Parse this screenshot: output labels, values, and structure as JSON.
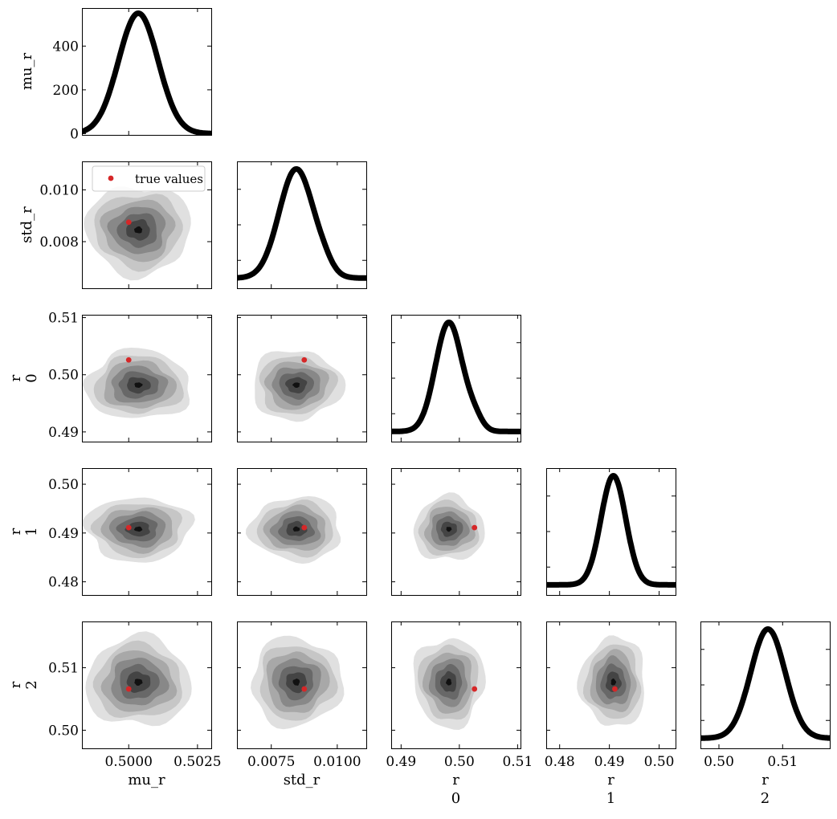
{
  "chart_data": {
    "type": "corner",
    "params": [
      "mu_r",
      "std_r",
      "r_0",
      "r_1",
      "r_2"
    ],
    "labels": {
      "mu_r": [
        "mu_r"
      ],
      "std_r": [
        "std_r"
      ],
      "r_0": [
        "r",
        "0"
      ],
      "r_1": [
        "r",
        "1"
      ],
      "r_2": [
        "r",
        "2"
      ]
    },
    "ranges": {
      "mu_r": [
        0.4983,
        0.503
      ],
      "std_r": [
        0.0062,
        0.0111
      ],
      "r_0": [
        0.4883,
        0.5105
      ],
      "r_1": [
        0.4773,
        0.5033
      ],
      "r_2": [
        0.4971,
        0.5174
      ]
    },
    "ticks": {
      "mu_r": [
        {
          "v": 0.5,
          "label": "0.5000"
        },
        {
          "v": 0.5025,
          "label": "0.5025"
        }
      ],
      "std_r": [
        {
          "v": 0.0075,
          "label": "0.0075"
        },
        {
          "v": 0.01,
          "label": "0.0100"
        }
      ],
      "r_0": [
        {
          "v": 0.49,
          "label": "0.49"
        },
        {
          "v": 0.5,
          "label": "0.50"
        },
        {
          "v": 0.51,
          "label": "0.51"
        }
      ],
      "r_1": [
        {
          "v": 0.48,
          "label": "0.48"
        },
        {
          "v": 0.49,
          "label": "0.49"
        },
        {
          "v": 0.5,
          "label": "0.50"
        }
      ],
      "r_2": [
        {
          "v": 0.5,
          "label": "0.50"
        },
        {
          "v": 0.51,
          "label": "0.51"
        }
      ]
    },
    "row_ticks": {
      "std_r": [
        {
          "v": 0.008,
          "label": "0.008"
        },
        {
          "v": 0.01,
          "label": "0.010"
        }
      ],
      "r_0": [
        {
          "v": 0.49,
          "label": "0.49"
        },
        {
          "v": 0.5,
          "label": "0.50"
        },
        {
          "v": 0.51,
          "label": "0.51"
        }
      ],
      "r_1": [
        {
          "v": 0.48,
          "label": "0.48"
        },
        {
          "v": 0.49,
          "label": "0.49"
        },
        {
          "v": 0.5,
          "label": "0.50"
        }
      ],
      "r_2": [
        {
          "v": 0.5,
          "label": "0.50"
        },
        {
          "v": 0.51,
          "label": "0.51"
        }
      ]
    },
    "marginal_ylabel": "mu_r",
    "marginal_yticks": [
      {
        "v": 0,
        "label": "0"
      },
      {
        "v": 200,
        "label": "200"
      },
      {
        "v": 400,
        "label": "400"
      }
    ],
    "marginal_ymax": 580,
    "marginals": {
      "mu_r": {
        "peak": 550,
        "center": 0.50035,
        "sigma": 0.00072
      },
      "std_r": {
        "center": 0.00845,
        "sigma": 0.00065
      },
      "r_0": {
        "center": 0.4982,
        "sigma": 0.0023
      },
      "r_1": {
        "center": 0.4908,
        "sigma": 0.0025
      },
      "r_2": {
        "center": 0.5077,
        "sigma": 0.0027
      }
    },
    "true_values": {
      "mu_r": 0.5,
      "std_r": 0.00875,
      "r_0": 0.5026,
      "r_1": 0.4911,
      "r_2": 0.5066
    },
    "legend": {
      "label": "true values",
      "placement": "top-left",
      "marker_color": "#d62728"
    },
    "contour_colors": [
      "#e0e0e0",
      "#c6c6c6",
      "#a8a8a8",
      "#888888",
      "#686868",
      "#444444",
      "#111111"
    ],
    "line_color": "#000000"
  }
}
